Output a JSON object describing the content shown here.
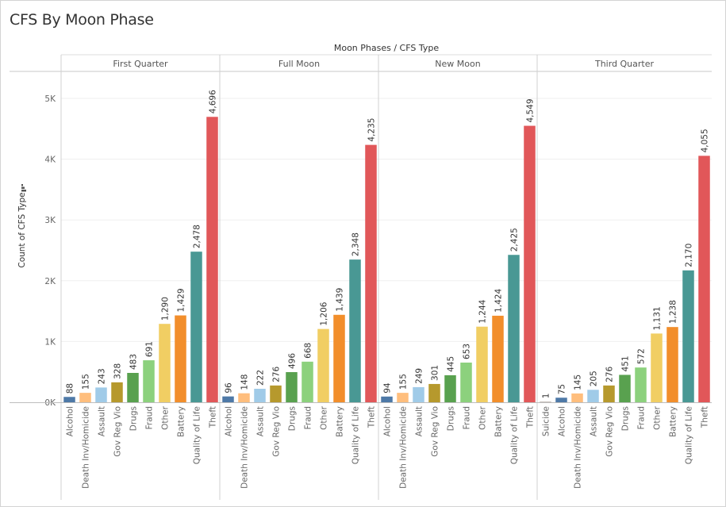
{
  "title": "CFS By Moon Phase",
  "chart_data": {
    "type": "bar",
    "header": "Moon Phases  /  CFS Type",
    "ylabel": "Count of CFS Type",
    "ylim": [
      0,
      5400
    ],
    "yticks": [
      0,
      1000,
      2000,
      3000,
      4000,
      5000
    ],
    "ytick_labels": [
      "0K",
      "1K",
      "2K",
      "3K",
      "4K",
      "5K"
    ],
    "grid": true,
    "panels": [
      {
        "name": "First Quarter",
        "categories": [
          "Alcohol",
          "Death Inv/Homicide",
          "Assault",
          "Gov Reg Vio",
          "Drugs",
          "Fraud",
          "Other",
          "Battery",
          "Quality of Life",
          "Theft"
        ],
        "values": [
          88,
          155,
          243,
          328,
          483,
          691,
          1290,
          1429,
          2478,
          4696
        ],
        "labels": [
          "88",
          "155",
          "243",
          "328",
          "483",
          "691",
          "1,290",
          "1,429",
          "2,478",
          "4,696"
        ]
      },
      {
        "name": "Full Moon",
        "categories": [
          "Alcohol",
          "Death Inv/Homicide",
          "Assault",
          "Gov Reg Vio",
          "Drugs",
          "Fraud",
          "Other",
          "Battery",
          "Quality of Life",
          "Theft"
        ],
        "values": [
          96,
          148,
          222,
          276,
          496,
          668,
          1206,
          1439,
          2348,
          4235
        ],
        "labels": [
          "96",
          "148",
          "222",
          "276",
          "496",
          "668",
          "1,206",
          "1,439",
          "2,348",
          "4,235"
        ]
      },
      {
        "name": "New Moon",
        "categories": [
          "Alcohol",
          "Death Inv/Homicide",
          "Assault",
          "Gov Reg Vio",
          "Drugs",
          "Fraud",
          "Other",
          "Battery",
          "Quality of Life",
          "Theft"
        ],
        "values": [
          94,
          155,
          249,
          301,
          445,
          653,
          1244,
          1424,
          2425,
          4549
        ],
        "labels": [
          "94",
          "155",
          "249",
          "301",
          "445",
          "653",
          "1,244",
          "1,424",
          "2,425",
          "4,549"
        ]
      },
      {
        "name": "Third Quarter",
        "categories": [
          "Suicide",
          "Alcohol",
          "Death Inv/Homicide",
          "Assault",
          "Gov Reg Vio",
          "Drugs",
          "Fraud",
          "Other",
          "Battery",
          "Quality of Life",
          "Theft"
        ],
        "values": [
          1,
          75,
          145,
          205,
          276,
          451,
          572,
          1131,
          1238,
          2170,
          4055
        ],
        "labels": [
          "1",
          "75",
          "145",
          "205",
          "276",
          "451",
          "572",
          "1,131",
          "1,238",
          "2,170",
          "4,055"
        ]
      }
    ],
    "category_colors": {
      "Suicide": "#bab0ac",
      "Alcohol": "#4e79a7",
      "Death Inv/Homicide": "#ffbe7d",
      "Assault": "#a0cbe8",
      "Gov Reg Vio": "#b6992d",
      "Drugs": "#59a14f",
      "Fraud": "#8cd17d",
      "Other": "#f1ce63",
      "Battery": "#f28e2b",
      "Quality of Life": "#499894",
      "Theft": "#e15759"
    }
  }
}
